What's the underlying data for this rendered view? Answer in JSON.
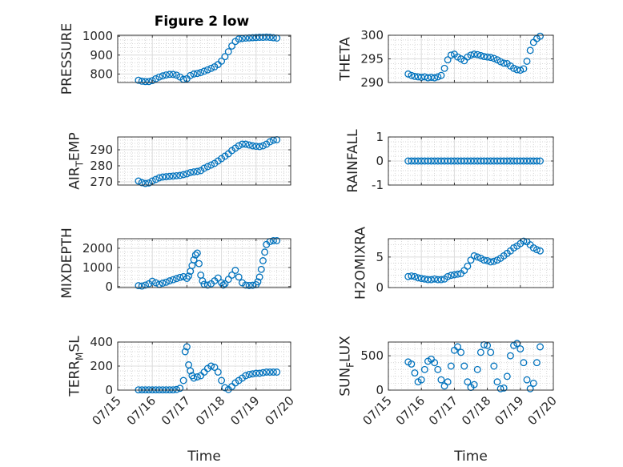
{
  "figure": {
    "title": "Figure 2 low",
    "marker_color": "#0072bd",
    "grid": true,
    "x_tick_labels": [
      "07/15",
      "07/16",
      "07/17",
      "07/18",
      "07/19",
      "07/20"
    ],
    "xlabel": "Time"
  },
  "chart_data": [
    {
      "type": "scatter",
      "ylabel": "PRESSURE",
      "title": "Figure 2 low",
      "xlim": [
        0,
        5
      ],
      "ylim": [
        755,
        1005
      ],
      "yticks": [
        800,
        900,
        1000
      ],
      "x": [
        0.6,
        0.7,
        0.8,
        0.9,
        1.0,
        1.1,
        1.2,
        1.3,
        1.4,
        1.5,
        1.6,
        1.7,
        1.8,
        1.9,
        2.0,
        2.1,
        2.2,
        2.3,
        2.4,
        2.5,
        2.6,
        2.7,
        2.8,
        2.9,
        3.0,
        3.1,
        3.2,
        3.3,
        3.4,
        3.5,
        3.6,
        3.7,
        3.8,
        3.9,
        4.0,
        4.1,
        4.2,
        4.3,
        4.4,
        4.5,
        4.6
      ],
      "y": [
        767,
        762,
        760,
        760,
        765,
        775,
        784,
        790,
        795,
        798,
        798,
        794,
        784,
        772,
        775,
        792,
        800,
        803,
        808,
        815,
        822,
        830,
        838,
        850,
        868,
        892,
        918,
        948,
        972,
        985,
        988,
        990,
        991,
        992,
        993,
        994,
        994,
        995,
        994,
        992,
        990
      ]
    },
    {
      "type": "scatter",
      "ylabel": "THETA",
      "xlim": [
        0,
        5
      ],
      "ylim": [
        290,
        300
      ],
      "yticks": [
        290,
        295,
        300
      ],
      "x": [
        0.6,
        0.7,
        0.8,
        0.9,
        1.0,
        1.1,
        1.2,
        1.3,
        1.4,
        1.5,
        1.6,
        1.7,
        1.8,
        1.9,
        2.0,
        2.1,
        2.2,
        2.3,
        2.4,
        2.5,
        2.6,
        2.7,
        2.8,
        2.9,
        3.0,
        3.1,
        3.2,
        3.3,
        3.4,
        3.5,
        3.6,
        3.7,
        3.8,
        3.9,
        4.0,
        4.1,
        4.2,
        4.3,
        4.4,
        4.5,
        4.6
      ],
      "y": [
        291.8,
        291.5,
        291.3,
        291.2,
        291.1,
        291.2,
        291.0,
        291.1,
        291.0,
        291.2,
        291.5,
        293.0,
        294.8,
        295.8,
        296.0,
        295.4,
        295.0,
        294.6,
        295.4,
        295.8,
        296.0,
        295.9,
        295.7,
        295.5,
        295.4,
        295.3,
        295.1,
        294.8,
        294.4,
        294.1,
        294.0,
        293.5,
        293.0,
        292.7,
        292.6,
        292.9,
        294.5,
        296.8,
        298.5,
        299.3,
        299.8
      ]
    },
    {
      "type": "scatter",
      "ylabel": "AIR_TEMP",
      "xlim": [
        0,
        5
      ],
      "ylim": [
        268,
        298
      ],
      "yticks": [
        270,
        280,
        290
      ],
      "x": [
        0.6,
        0.7,
        0.8,
        0.9,
        1.0,
        1.1,
        1.2,
        1.3,
        1.4,
        1.5,
        1.6,
        1.7,
        1.8,
        1.9,
        2.0,
        2.1,
        2.2,
        2.3,
        2.4,
        2.5,
        2.6,
        2.7,
        2.8,
        2.9,
        3.0,
        3.1,
        3.2,
        3.3,
        3.4,
        3.5,
        3.6,
        3.7,
        3.8,
        3.9,
        4.0,
        4.1,
        4.2,
        4.3,
        4.4,
        4.5,
        4.6
      ],
      "y": [
        270.5,
        269.5,
        269.0,
        269.3,
        270.5,
        271.5,
        272.5,
        273.0,
        273.2,
        273.4,
        273.6,
        273.8,
        274.0,
        274.5,
        275.0,
        275.8,
        276.2,
        276.5,
        277.0,
        278.5,
        279.5,
        280.5,
        281.5,
        283.0,
        284.5,
        286.0,
        287.5,
        289.5,
        291.0,
        292.5,
        293.5,
        293.5,
        293.0,
        292.5,
        292.2,
        292.0,
        292.5,
        293.5,
        295.0,
        296.0,
        296.3
      ]
    },
    {
      "type": "scatter",
      "ylabel": "RAINFALL",
      "xlim": [
        0,
        5
      ],
      "ylim": [
        -1,
        1
      ],
      "yticks": [
        -1,
        0,
        1
      ],
      "x": [
        0.6,
        0.7,
        0.8,
        0.9,
        1.0,
        1.1,
        1.2,
        1.3,
        1.4,
        1.5,
        1.6,
        1.7,
        1.8,
        1.9,
        2.0,
        2.1,
        2.2,
        2.3,
        2.4,
        2.5,
        2.6,
        2.7,
        2.8,
        2.9,
        3.0,
        3.1,
        3.2,
        3.3,
        3.4,
        3.5,
        3.6,
        3.7,
        3.8,
        3.9,
        4.0,
        4.1,
        4.2,
        4.3,
        4.4,
        4.5,
        4.6
      ],
      "y": [
        0,
        0,
        0,
        0,
        0,
        0,
        0,
        0,
        0,
        0,
        0,
        0,
        0,
        0,
        0,
        0,
        0,
        0,
        0,
        0,
        0,
        0,
        0,
        0,
        0,
        0,
        0,
        0,
        0,
        0,
        0,
        0,
        0,
        0,
        0,
        0,
        0,
        0,
        0,
        0,
        0
      ]
    },
    {
      "type": "scatter",
      "ylabel": "MIXDEPTH",
      "xlim": [
        0,
        5
      ],
      "ylim": [
        -50,
        2500
      ],
      "yticks": [
        0,
        1000,
        2000
      ],
      "x": [
        0.6,
        0.7,
        0.8,
        0.9,
        1.0,
        1.1,
        1.2,
        1.3,
        1.4,
        1.5,
        1.6,
        1.7,
        1.8,
        1.9,
        2.0,
        2.05,
        2.1,
        2.15,
        2.2,
        2.25,
        2.3,
        2.35,
        2.4,
        2.45,
        2.5,
        2.6,
        2.7,
        2.8,
        2.9,
        3.0,
        3.05,
        3.1,
        3.2,
        3.3,
        3.4,
        3.5,
        3.6,
        3.7,
        3.8,
        3.9,
        4.0,
        4.05,
        4.1,
        4.15,
        4.2,
        4.25,
        4.3,
        4.4,
        4.5,
        4.6
      ],
      "y": [
        50,
        30,
        80,
        150,
        280,
        200,
        120,
        180,
        230,
        300,
        360,
        420,
        480,
        520,
        430,
        550,
        800,
        1100,
        1400,
        1650,
        1750,
        1200,
        600,
        300,
        120,
        80,
        150,
        300,
        450,
        200,
        80,
        150,
        380,
        600,
        850,
        500,
        200,
        80,
        60,
        70,
        100,
        250,
        500,
        900,
        1350,
        1800,
        2200,
        2350,
        2400,
        2400
      ]
    },
    {
      "type": "scatter",
      "ylabel": "H2OMIXRA",
      "xlim": [
        0,
        5
      ],
      "ylim": [
        0,
        8
      ],
      "yticks": [
        0,
        5
      ],
      "x": [
        0.6,
        0.7,
        0.8,
        0.9,
        1.0,
        1.1,
        1.2,
        1.3,
        1.4,
        1.5,
        1.6,
        1.7,
        1.8,
        1.9,
        2.0,
        2.1,
        2.2,
        2.3,
        2.4,
        2.5,
        2.6,
        2.7,
        2.8,
        2.9,
        3.0,
        3.1,
        3.2,
        3.3,
        3.4,
        3.5,
        3.6,
        3.7,
        3.8,
        3.9,
        4.0,
        4.1,
        4.2,
        4.3,
        4.4,
        4.5,
        4.6
      ],
      "y": [
        1.8,
        1.9,
        1.8,
        1.6,
        1.5,
        1.4,
        1.3,
        1.3,
        1.4,
        1.3,
        1.3,
        1.4,
        1.8,
        2.0,
        2.1,
        2.2,
        2.3,
        2.8,
        3.5,
        4.5,
        5.2,
        5.0,
        4.8,
        4.5,
        4.4,
        4.2,
        4.3,
        4.5,
        4.8,
        5.2,
        5.6,
        6.0,
        6.5,
        6.8,
        7.2,
        7.6,
        7.5,
        7.0,
        6.5,
        6.2,
        6.0
      ]
    },
    {
      "type": "scatter",
      "ylabel": "TERR_MSL",
      "xlim": [
        0,
        5
      ],
      "ylim": [
        0,
        400
      ],
      "yticks": [
        0,
        200,
        400
      ],
      "x": [
        0.6,
        0.7,
        0.8,
        0.9,
        1.0,
        1.1,
        1.2,
        1.3,
        1.4,
        1.5,
        1.6,
        1.7,
        1.8,
        1.9,
        1.95,
        2.0,
        2.05,
        2.1,
        2.15,
        2.2,
        2.3,
        2.4,
        2.5,
        2.6,
        2.7,
        2.8,
        2.9,
        3.0,
        3.1,
        3.2,
        3.3,
        3.4,
        3.5,
        3.6,
        3.7,
        3.8,
        3.9,
        4.0,
        4.1,
        4.2,
        4.3,
        4.4,
        4.5,
        4.6
      ],
      "y": [
        2,
        2,
        2,
        2,
        2,
        2,
        2,
        2,
        2,
        2,
        2,
        5,
        15,
        80,
        320,
        360,
        210,
        160,
        120,
        100,
        110,
        120,
        150,
        180,
        200,
        190,
        150,
        80,
        20,
        5,
        30,
        60,
        80,
        100,
        120,
        130,
        135,
        140,
        140,
        145,
        150,
        150,
        150,
        150
      ]
    },
    {
      "type": "scatter",
      "ylabel": "SUN_FLUX",
      "xlim": [
        0,
        5
      ],
      "ylim": [
        0,
        700
      ],
      "yticks": [
        0,
        500
      ],
      "x": [
        0.6,
        0.7,
        0.8,
        0.9,
        1.0,
        1.1,
        1.2,
        1.3,
        1.4,
        1.5,
        1.6,
        1.7,
        1.8,
        1.9,
        2.0,
        2.1,
        2.2,
        2.3,
        2.4,
        2.5,
        2.6,
        2.7,
        2.8,
        2.9,
        3.0,
        3.1,
        3.2,
        3.3,
        3.4,
        3.5,
        3.6,
        3.7,
        3.8,
        3.9,
        4.0,
        4.1,
        4.2,
        4.3,
        4.4,
        4.5,
        4.6
      ],
      "y": [
        410,
        380,
        250,
        120,
        150,
        300,
        420,
        450,
        400,
        300,
        150,
        60,
        120,
        350,
        580,
        630,
        550,
        350,
        120,
        40,
        80,
        300,
        550,
        660,
        650,
        550,
        350,
        120,
        20,
        30,
        200,
        500,
        650,
        680,
        600,
        400,
        150,
        20,
        100,
        400,
        630
      ]
    }
  ]
}
